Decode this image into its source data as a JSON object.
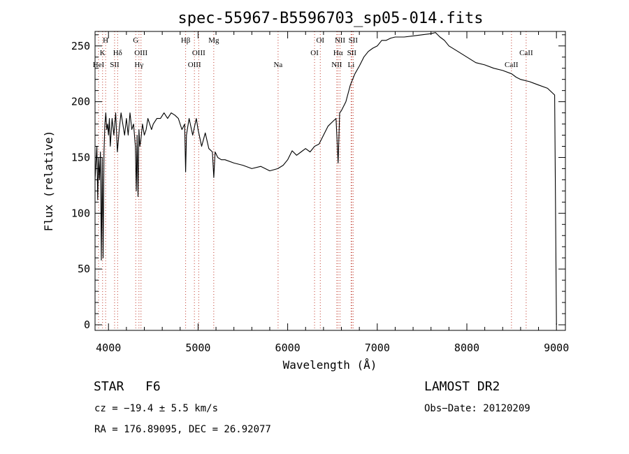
{
  "chart_data": {
    "type": "line",
    "title": "spec-55967-B5596703_sp05-014.fits",
    "xlabel": "Wavelength (Å)",
    "ylabel": "Flux (relative)",
    "xlim": [
      3850,
      9100
    ],
    "ylim": [
      -5,
      263
    ],
    "x_ticks": [
      4000,
      5000,
      6000,
      7000,
      8000,
      9000
    ],
    "y_ticks": [
      0,
      50,
      100,
      150,
      200,
      250
    ],
    "grid": false,
    "series": [
      {
        "x": [
          3850,
          3870,
          3880,
          3890,
          3900,
          3910,
          3920,
          3930,
          3940,
          3950,
          3960,
          3970,
          3980,
          3990,
          4000,
          4010,
          4020,
          4040,
          4060,
          4080,
          4100,
          4120,
          4140,
          4160,
          4180,
          4200,
          4220,
          4240,
          4260,
          4280,
          4300,
          4310,
          4320,
          4330,
          4340,
          4350,
          4360,
          4380,
          4400,
          4420,
          4440,
          4460,
          4480,
          4500,
          4540,
          4580,
          4620,
          4660,
          4700,
          4740,
          4780,
          4820,
          4850,
          4861,
          4870,
          4880,
          4900,
          4940,
          4980,
          5000,
          5040,
          5080,
          5120,
          5160,
          5175,
          5190,
          5220,
          5260,
          5300,
          5400,
          5500,
          5600,
          5700,
          5800,
          5890,
          5950,
          6000,
          6050,
          6100,
          6150,
          6200,
          6250,
          6300,
          6350,
          6400,
          6450,
          6500,
          6540,
          6563,
          6580,
          6600,
          6650,
          6700,
          6750,
          6800,
          6850,
          6900,
          6950,
          7000,
          7050,
          7100,
          7150,
          7200,
          7300,
          7400,
          7500,
          7600,
          7650,
          7700,
          7750,
          7800,
          7900,
          8000,
          8100,
          8200,
          8300,
          8400,
          8500,
          8550,
          8600,
          8700,
          8800,
          8900,
          8980,
          9000
        ],
        "y": [
          130,
          160,
          112,
          150,
          130,
          155,
          58,
          150,
          60,
          155,
          180,
          190,
          175,
          180,
          170,
          185,
          160,
          185,
          170,
          190,
          155,
          175,
          190,
          180,
          170,
          185,
          170,
          190,
          175,
          180,
          160,
          120,
          170,
          115,
          175,
          160,
          165,
          180,
          170,
          175,
          185,
          180,
          175,
          180,
          185,
          185,
          190,
          185,
          190,
          188,
          185,
          175,
          180,
          137,
          170,
          175,
          185,
          170,
          185,
          175,
          160,
          172,
          158,
          155,
          132,
          155,
          150,
          148,
          148,
          145,
          143,
          140,
          142,
          138,
          140,
          143,
          148,
          156,
          152,
          155,
          158,
          155,
          160,
          162,
          170,
          178,
          182,
          185,
          145,
          190,
          192,
          200,
          215,
          225,
          232,
          240,
          245,
          248,
          250,
          255,
          255,
          257,
          258,
          258,
          259,
          260,
          261,
          262,
          258,
          255,
          250,
          245,
          240,
          235,
          233,
          230,
          228,
          225,
          222,
          220,
          218,
          215,
          212,
          206,
          0
        ]
      }
    ],
    "line_markers": [
      {
        "wl": 3889,
        "labels": [
          "HeI"
        ]
      },
      {
        "wl": 3934,
        "labels": [
          "K"
        ]
      },
      {
        "wl": 3968,
        "labels": [
          "H"
        ]
      },
      {
        "wl": 4068,
        "labels": [
          "SII"
        ]
      },
      {
        "wl": 4102,
        "labels": [
          "Hδ"
        ]
      },
      {
        "wl": 4304,
        "labels": [
          "G"
        ]
      },
      {
        "wl": 4340,
        "labels": [
          "Hγ"
        ]
      },
      {
        "wl": 4363,
        "labels": [
          "OIII"
        ]
      },
      {
        "wl": 4861,
        "labels": [
          "Hβ"
        ]
      },
      {
        "wl": 4959,
        "labels": [
          "OIII"
        ]
      },
      {
        "wl": 5007,
        "labels": [
          "OIII"
        ]
      },
      {
        "wl": 5175,
        "labels": [
          "Mg"
        ]
      },
      {
        "wl": 5893,
        "labels": [
          "Na"
        ]
      },
      {
        "wl": 6300,
        "labels": [
          "OI"
        ]
      },
      {
        "wl": 6364,
        "labels": [
          "OI"
        ]
      },
      {
        "wl": 6548,
        "labels": [
          "NII"
        ]
      },
      {
        "wl": 6563,
        "labels": [
          "Hα"
        ]
      },
      {
        "wl": 6584,
        "labels": [
          "NII"
        ]
      },
      {
        "wl": 6708,
        "labels": [
          "Li"
        ]
      },
      {
        "wl": 6716,
        "labels": [
          "SII"
        ]
      },
      {
        "wl": 6731,
        "labels": [
          "SII"
        ]
      },
      {
        "wl": 8498,
        "labels": [
          "CaII"
        ]
      },
      {
        "wl": 8662,
        "labels": [
          "CaII"
        ]
      }
    ],
    "marker_label_rows": [
      {
        "wl": 3968,
        "text": "H",
        "row": 0
      },
      {
        "wl": 3934,
        "text": "K",
        "row": 1
      },
      {
        "wl": 3889,
        "text": "HeI",
        "row": 2
      },
      {
        "wl": 4102,
        "text": "Hδ",
        "row": 1
      },
      {
        "wl": 4068,
        "text": "SII",
        "row": 2
      },
      {
        "wl": 4304,
        "text": "G",
        "row": 0
      },
      {
        "wl": 4363,
        "text": "OIII",
        "row": 1
      },
      {
        "wl": 4340,
        "text": "Hγ",
        "row": 2
      },
      {
        "wl": 4861,
        "text": "Hβ",
        "row": 0
      },
      {
        "wl": 5007,
        "text": "OIII",
        "row": 1
      },
      {
        "wl": 4959,
        "text": "OIII",
        "row": 2
      },
      {
        "wl": 5175,
        "text": "Mg",
        "row": 0
      },
      {
        "wl": 5893,
        "text": "Na",
        "row": 2
      },
      {
        "wl": 6364,
        "text": "OI",
        "row": 0
      },
      {
        "wl": 6300,
        "text": "OI",
        "row": 1
      },
      {
        "wl": 6584,
        "text": "NII",
        "row": 0
      },
      {
        "wl": 6731,
        "text": "SII",
        "row": 0
      },
      {
        "wl": 6563,
        "text": "Hα",
        "row": 1
      },
      {
        "wl": 6716,
        "text": "SII",
        "row": 1
      },
      {
        "wl": 6548,
        "text": "NII",
        "row": 2
      },
      {
        "wl": 6708,
        "text": "Li",
        "row": 2
      },
      {
        "wl": 8662,
        "text": "CaII",
        "row": 1
      },
      {
        "wl": 8498,
        "text": "CaII",
        "row": 2
      }
    ],
    "colors": {
      "spectrum": "#000000",
      "marker": "#c0392b"
    }
  },
  "footer": {
    "class_label": "STAR",
    "subclass": "F6",
    "survey": "LAMOST DR2",
    "cz": "cz = −19.4 ± 5.5 km/s",
    "obs_date": "Obs−Date: 20120209",
    "coords": "RA = 176.89095, DEC =  26.92077"
  }
}
